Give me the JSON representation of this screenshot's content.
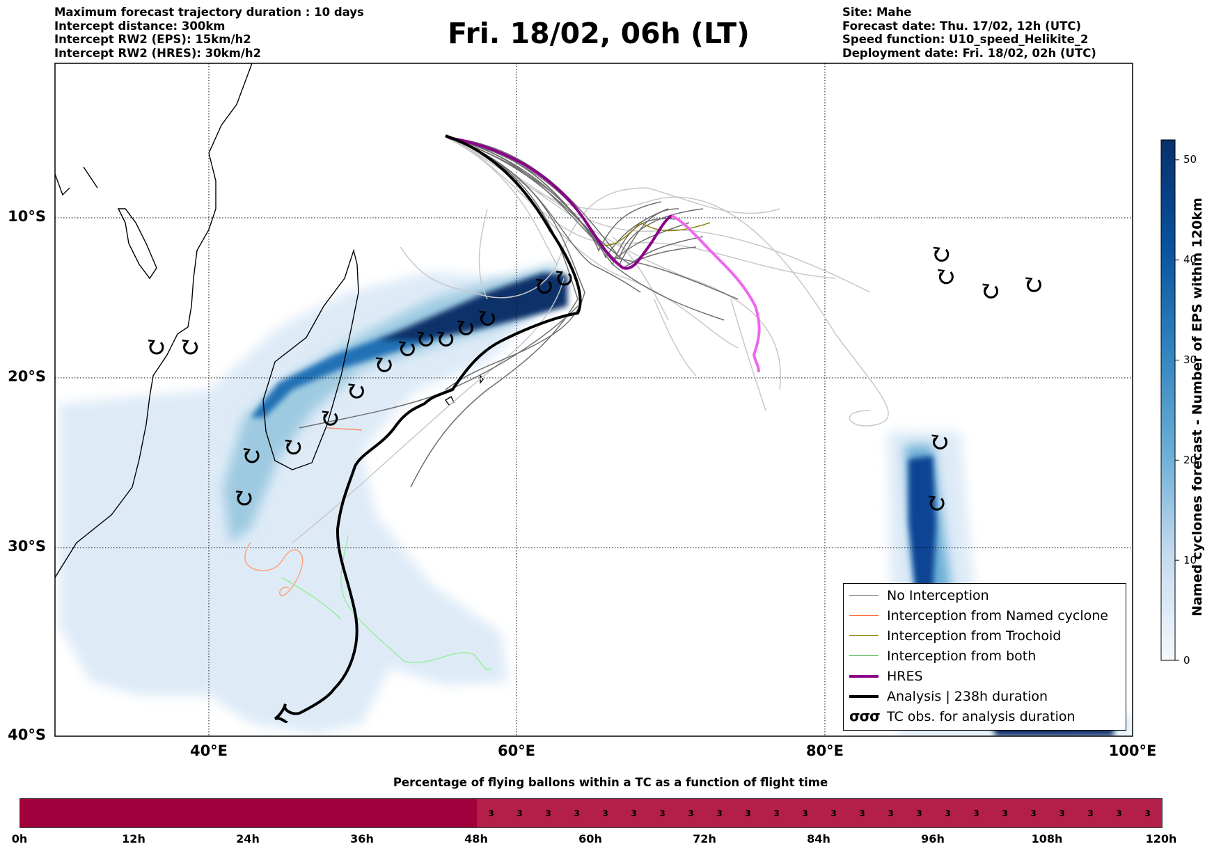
{
  "header_left": [
    "Maximum forecast trajectory duration : 10 days",
    "Intercept distance: 300km",
    "Intercept RW2 (EPS):  15km/h2",
    "Intercept RW2 (HRES): 30km/h2"
  ],
  "header_right": [
    "Site: Mahe",
    "Forecast date: Thu. 17/02, 12h (UTC)",
    "Speed function: U10_speed_Helikite_2",
    "Deployment date: Fri. 18/02, 02h (UTC)"
  ],
  "title": "Fri. 18/02, 06h (LT)",
  "map": {
    "lon_range": [
      30,
      100
    ],
    "lat_range": [
      -40,
      0
    ],
    "lat_labels": [
      "10°S",
      "20°S",
      "30°S",
      "40°S"
    ],
    "lon_labels": [
      "40°E",
      "60°E",
      "80°E",
      "100°E"
    ],
    "colors": {
      "density_dark": "#08306b",
      "density_light": "#deebf7",
      "hres": "#8b008b",
      "hres_late": "#ee66ee",
      "analysis": "#000000"
    },
    "tc_obs_lonlat": [
      [
        36.6,
        -18.1
      ],
      [
        38.8,
        -18.1
      ],
      [
        42.8,
        -24.6
      ],
      [
        45.5,
        -24.1
      ],
      [
        42.3,
        -27.1
      ],
      [
        47.9,
        -22.4
      ],
      [
        49.6,
        -20.8
      ],
      [
        51.4,
        -19.2
      ],
      [
        52.9,
        -18.2
      ],
      [
        54.1,
        -17.6
      ],
      [
        55.4,
        -17.6
      ],
      [
        56.7,
        -16.9
      ],
      [
        58.1,
        -16.3
      ],
      [
        61.8,
        -14.3
      ],
      [
        63.1,
        -13.8
      ],
      [
        87.6,
        -12.3
      ],
      [
        87.9,
        -13.7
      ],
      [
        90.8,
        -14.6
      ],
      [
        93.6,
        -14.2
      ],
      [
        87.5,
        -23.8
      ],
      [
        87.3,
        -27.4
      ]
    ]
  },
  "colorbar": {
    "label": "Named cyclones forecast - Number of EPS within 120km",
    "ticks": [
      "0",
      "10",
      "20",
      "30",
      "40",
      "50"
    ],
    "min": 0,
    "max": 52
  },
  "legend": {
    "items": [
      {
        "label": "No Interception",
        "color": "#808080",
        "width": 1.5
      },
      {
        "label": "Interception from Named cyclone",
        "color": "#ff6633",
        "width": 1.5
      },
      {
        "label": "Interception from Trochoid",
        "color": "#8b8000",
        "width": 1.5
      },
      {
        "label": "Interception from both",
        "color": "#1f9f1f",
        "width": 1.5
      },
      {
        "label": "HRES",
        "color": "#8b008b",
        "width": 4
      },
      {
        "label": "Analysis | 238h duration",
        "color": "#000000",
        "width": 4
      },
      {
        "label": "TC obs. for analysis duration",
        "color": "",
        "width": 0
      }
    ],
    "tc_symbol": "σσσ"
  },
  "bottom_bar": {
    "title": "Percentage of flying ballons within a TC as a function of flight time",
    "segments": [
      "",
      "",
      "",
      "",
      "",
      "",
      "",
      "",
      "",
      "",
      "",
      "",
      "",
      "",
      "",
      "",
      "3",
      "3",
      "3",
      "3",
      "3",
      "3",
      "3",
      "3",
      "3",
      "3",
      "3",
      "3",
      "3",
      "3",
      "3",
      "3",
      "3",
      "3",
      "3",
      "3",
      "3",
      "3",
      "3",
      "3"
    ],
    "colors": {
      "zero": "#a0003c",
      "three": "#b31f48"
    },
    "time_labels": [
      "0h",
      "12h",
      "24h",
      "36h",
      "48h",
      "60h",
      "72h",
      "84h",
      "96h",
      "108h",
      "120h"
    ]
  }
}
